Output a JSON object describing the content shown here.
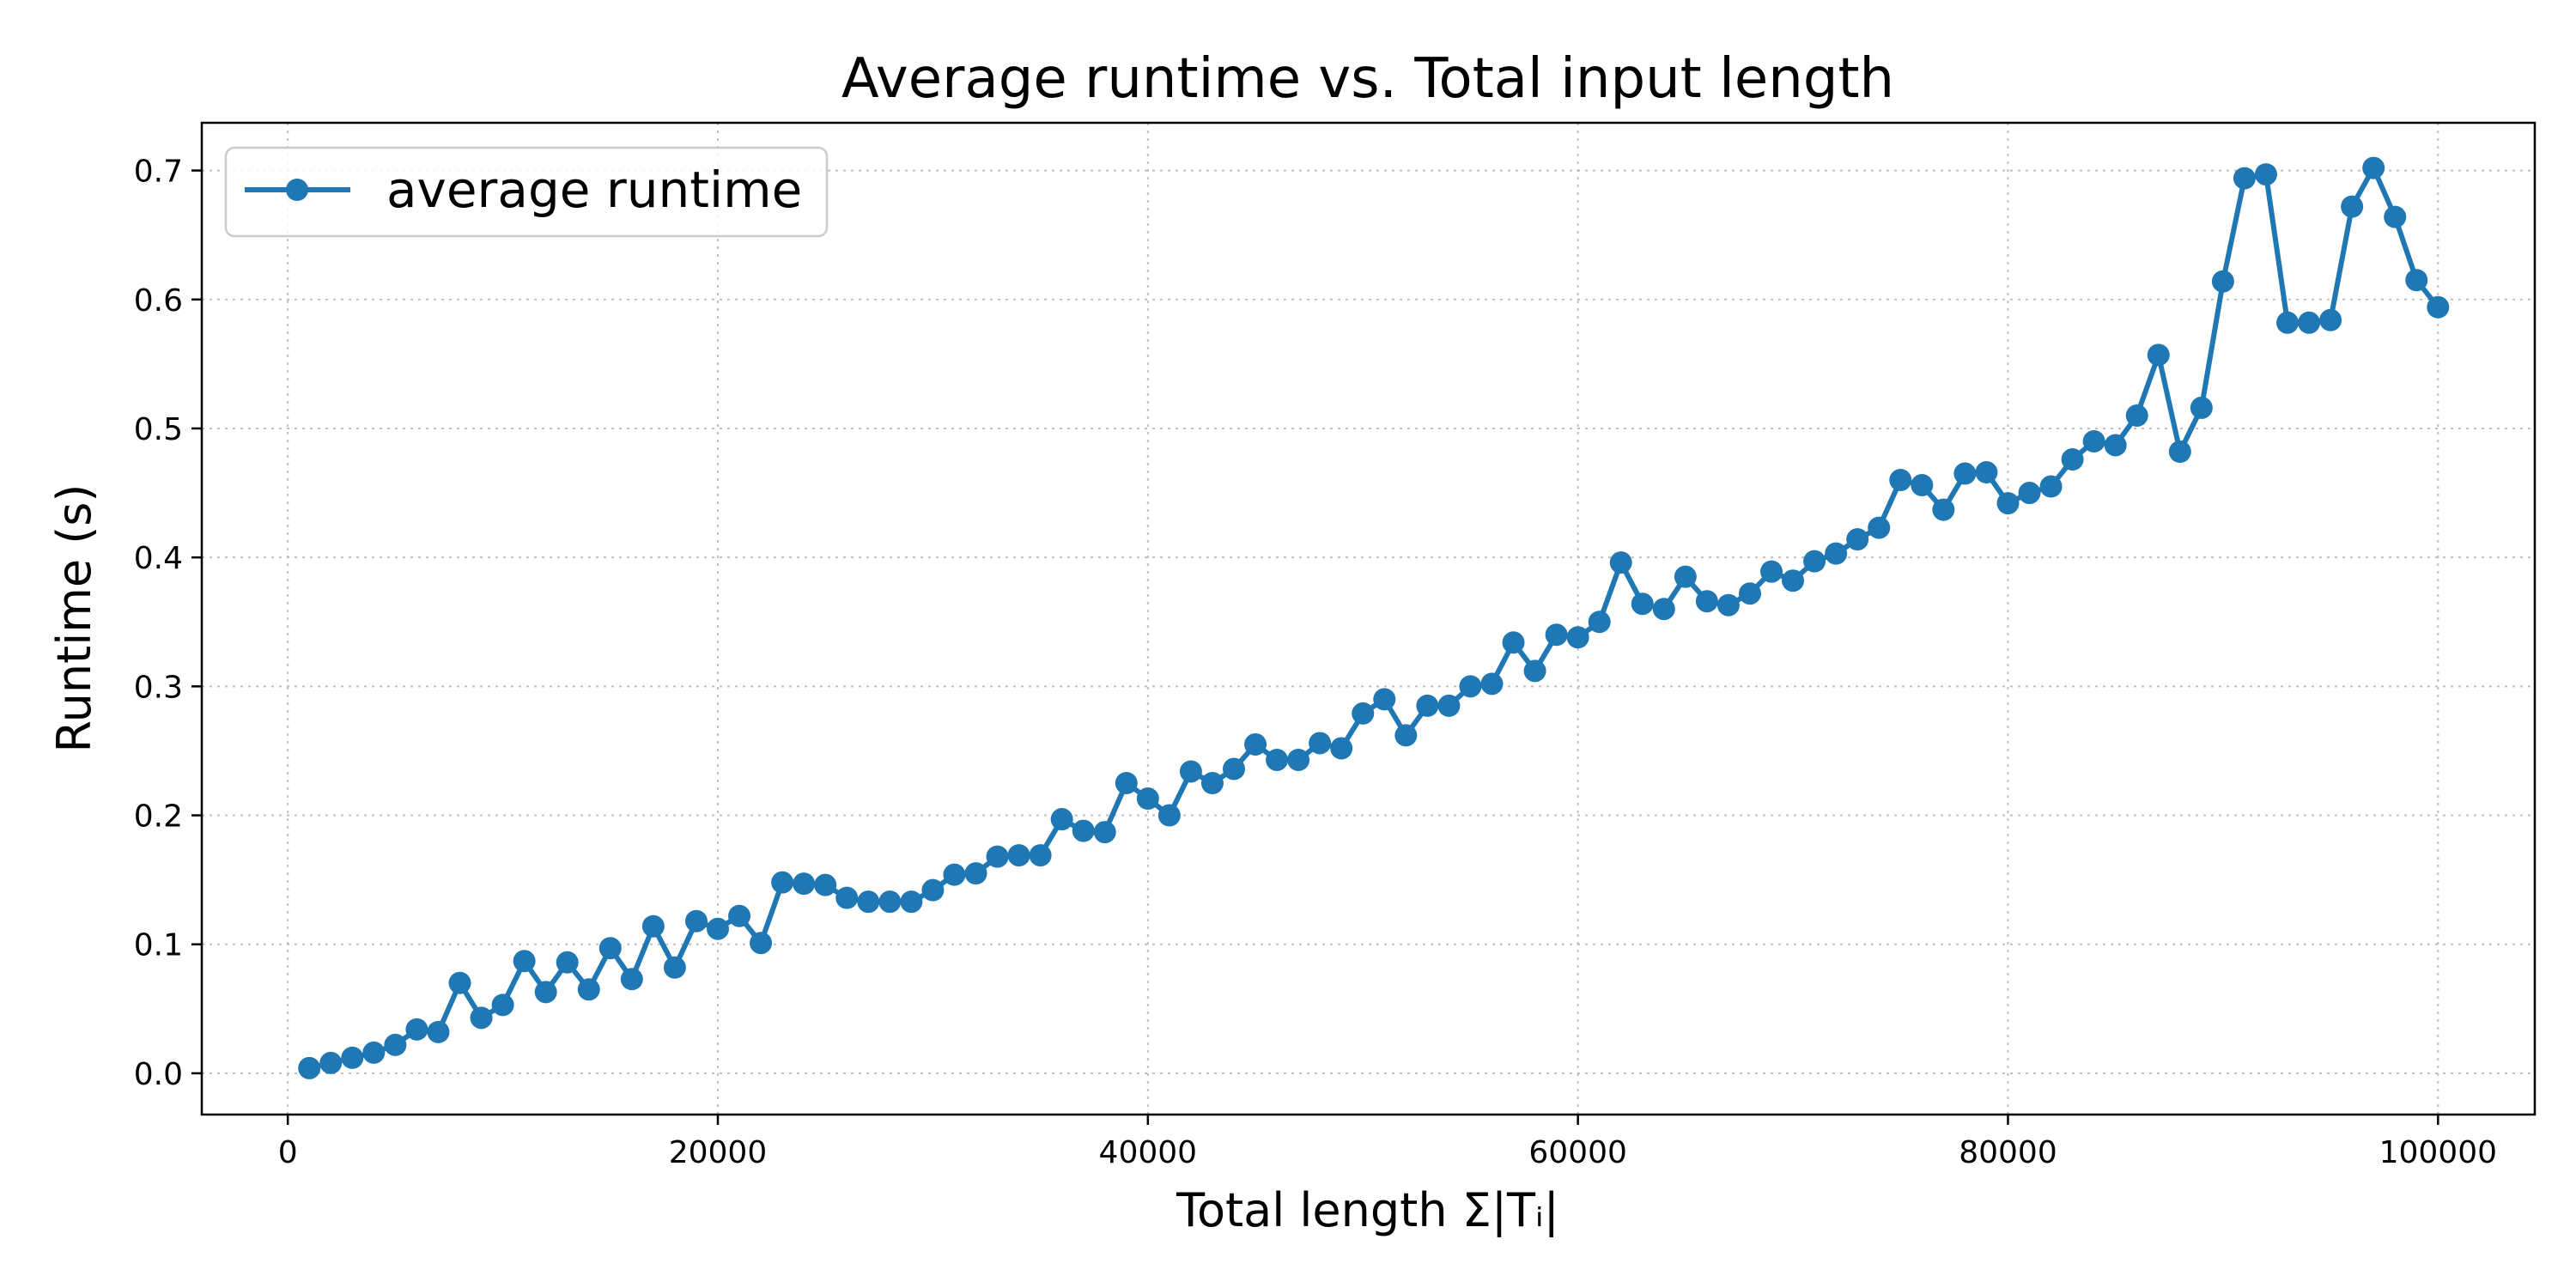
{
  "chart_data": {
    "type": "line",
    "title": "Average runtime vs. Total input length",
    "xlabel": "Total length Σ|Tᵢ|",
    "ylabel": "Runtime (s)",
    "xlim": [
      -4000,
      104500
    ],
    "ylim": [
      -0.032,
      0.737
    ],
    "xticks": [
      0,
      20000,
      40000,
      60000,
      80000,
      100000
    ],
    "xtick_labels": [
      "0",
      "20000",
      "40000",
      "60000",
      "80000",
      "100000"
    ],
    "yticks": [
      0.0,
      0.1,
      0.2,
      0.3,
      0.4,
      0.5,
      0.6,
      0.7
    ],
    "ytick_labels": [
      "0.0",
      "0.1",
      "0.2",
      "0.3",
      "0.4",
      "0.5",
      "0.6",
      "0.7"
    ],
    "grid": true,
    "legend_position": "top-left",
    "series": [
      {
        "name": "average runtime",
        "color": "#1f77b4",
        "marker": "circle",
        "x": [
          1000,
          2000,
          3000,
          4000,
          5000,
          6000,
          7000,
          8000,
          9000,
          10000,
          11000,
          12000,
          13000,
          14000,
          15000,
          16000,
          17000,
          18000,
          19000,
          20000,
          21000,
          22000,
          23000,
          24000,
          25000,
          26000,
          27000,
          28000,
          29000,
          30000,
          31000,
          32000,
          33000,
          34000,
          35000,
          36000,
          37000,
          38000,
          39000,
          40000,
          41000,
          42000,
          43000,
          44000,
          45000,
          46000,
          47000,
          48000,
          49000,
          50000,
          51000,
          52000,
          53000,
          54000,
          55000,
          56000,
          57000,
          58000,
          59000,
          60000,
          61000,
          62000,
          63000,
          64000,
          65000,
          66000,
          67000,
          68000,
          69000,
          70000,
          71000,
          72000,
          73000,
          74000,
          75000,
          76000,
          77000,
          78000,
          79000,
          80000,
          81000,
          82000,
          83000,
          84000,
          85000,
          86000,
          87000,
          88000,
          89000,
          90000,
          91000,
          92000,
          93000,
          94000,
          95000,
          96000,
          97000,
          98000,
          99000,
          100000
        ],
        "y": [
          0.004,
          0.008,
          0.012,
          0.016,
          0.022,
          0.034,
          0.032,
          0.07,
          0.043,
          0.053,
          0.087,
          0.063,
          0.086,
          0.065,
          0.097,
          0.073,
          0.114,
          0.082,
          0.118,
          0.112,
          0.122,
          0.101,
          0.148,
          0.147,
          0.146,
          0.136,
          0.133,
          0.133,
          0.133,
          0.142,
          0.154,
          0.155,
          0.168,
          0.169,
          0.169,
          0.197,
          0.188,
          0.187,
          0.225,
          0.213,
          0.2,
          0.234,
          0.225,
          0.236,
          0.255,
          0.243,
          0.243,
          0.256,
          0.252,
          0.279,
          0.29,
          0.262,
          0.285,
          0.285,
          0.3,
          0.302,
          0.334,
          0.312,
          0.34,
          0.338,
          0.35,
          0.396,
          0.364,
          0.36,
          0.385,
          0.366,
          0.363,
          0.372,
          0.389,
          0.382,
          0.397,
          0.403,
          0.414,
          0.423,
          0.46,
          0.456,
          0.437,
          0.465,
          0.466,
          0.442,
          0.45,
          0.455,
          0.476,
          0.49,
          0.487,
          0.51,
          0.557,
          0.482,
          0.516,
          0.614,
          0.694,
          0.697,
          0.582,
          0.582,
          0.584,
          0.672,
          0.702,
          0.664,
          0.615,
          0.594
        ]
      }
    ]
  }
}
